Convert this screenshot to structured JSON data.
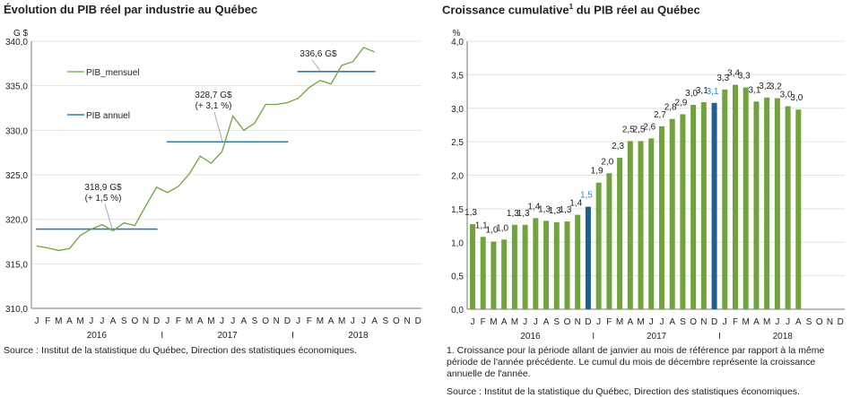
{
  "chart_data": [
    {
      "type": "line",
      "title": "Évolution du PIB réel par industrie au Québec",
      "ylabel": "G $",
      "ylim": [
        310,
        340
      ],
      "yticks": [
        "310,0",
        "315,0",
        "320,0",
        "325,0",
        "330,0",
        "335,0",
        "340,0"
      ],
      "grid": true,
      "month_labels": [
        "J",
        "F",
        "M",
        "A",
        "M",
        "J",
        "J",
        "A",
        "S",
        "O",
        "N",
        "D"
      ],
      "years": [
        "2016",
        "2017",
        "2018"
      ],
      "year_separator": "I",
      "legend": {
        "placement": "top-left",
        "items": [
          "PIB_mensuel",
          "PIB annuel"
        ]
      },
      "series": [
        {
          "name": "PIB_mensuel",
          "color": "#70a33c",
          "values": [
            317.0,
            316.8,
            316.5,
            316.7,
            318.2,
            318.9,
            319.4,
            318.7,
            319.6,
            319.3,
            321.5,
            323.6,
            323.0,
            323.7,
            325.1,
            327.1,
            326.3,
            327.6,
            331.6,
            330.0,
            330.8,
            332.9,
            332.9,
            333.1,
            333.6,
            334.8,
            335.6,
            335.2,
            337.3,
            337.7,
            339.3,
            338.8
          ]
        },
        {
          "name": "PIB annuel",
          "color": "#2b7bb9",
          "segments": [
            {
              "year": "2016",
              "value": 318.9,
              "months": 12,
              "label1": "318,9 G$",
              "label2": "(+ 1,5 %)"
            },
            {
              "year": "2017",
              "value": 328.7,
              "months": 12,
              "label1": "328,7 G$",
              "label2": "(+ 3,1 %)"
            },
            {
              "year": "2018",
              "value": 336.6,
              "months": 8,
              "label1": "336,6 G$",
              "label2": ""
            }
          ]
        }
      ],
      "source": "Source : Institut de la statistique du Québec, Direction des statistiques économiques."
    },
    {
      "type": "bar",
      "title": "Croissance cumulative",
      "title_sup": "1",
      "title_rest": " du PIB réel au Québec",
      "ylabel": "%",
      "ylim": [
        0,
        4
      ],
      "yticks": [
        "0,0",
        "0,5",
        "1,0",
        "1,5",
        "2,0",
        "2,5",
        "3,0",
        "3,5",
        "4,0"
      ],
      "grid": true,
      "bar_color": "#70a33c",
      "highlight_color": "#1f5f8f",
      "highlight_label_color": "#2b8fcf",
      "values": [
        1.27,
        1.08,
        1.01,
        1.04,
        1.26,
        1.26,
        1.36,
        1.32,
        1.3,
        1.31,
        1.41,
        1.53,
        1.89,
        2.03,
        2.26,
        2.51,
        2.51,
        2.55,
        2.73,
        2.84,
        2.91,
        3.05,
        3.09,
        3.08,
        3.28,
        3.35,
        3.31,
        3.1,
        3.16,
        3.15,
        3.03,
        2.98
      ],
      "labels": [
        "1,3",
        "1,1",
        "1,0",
        "1,0",
        "1,3",
        "1,3",
        "1,4",
        "1,3",
        "1,3",
        "1,3",
        "1,4",
        "1,5",
        "1,9",
        "2,0",
        "2,3",
        "2,5",
        "2,5",
        "2,6",
        "2,7",
        "2,8",
        "2,9",
        "3,0",
        "3,1",
        "3,1",
        "3,3",
        "3,4",
        "3,3",
        "3,1",
        "3,2",
        "3,2",
        "3,0",
        "3,0"
      ],
      "highlighted": [
        11,
        23
      ],
      "footnote": "1. Croissance pour la période allant de janvier au mois de référence par rapport à la même période de l'année précédente. Le cumul du mois de décembre représente la croissance annuelle de l'année.",
      "source": "Source : Institut de la statistique du Québec, Direction des statistiques économiques."
    }
  ]
}
